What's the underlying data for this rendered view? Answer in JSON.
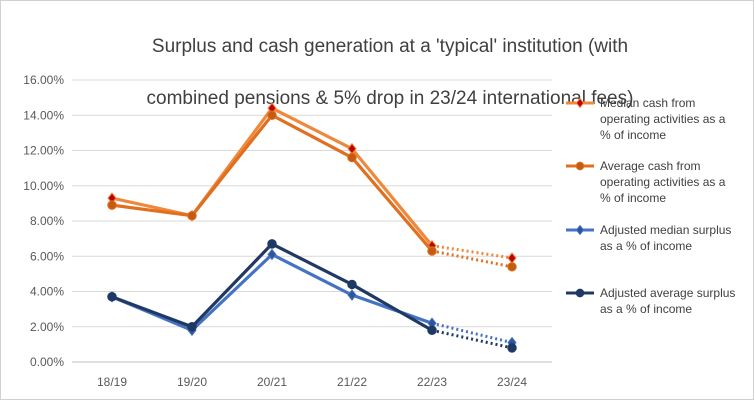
{
  "chart_data": {
    "type": "line",
    "title": "Surplus and cash generation at a 'typical' institution (with combined pensions & 5% drop in 23/24 international fees)",
    "title_lines": [
      "Surplus and cash generation at a 'typical' institution (with",
      "combined pensions & 5% drop in 23/24 international fees)"
    ],
    "categories": [
      "18/19",
      "19/20",
      "20/21",
      "21/22",
      "22/23",
      "23/24"
    ],
    "y_ticks": [
      "0.00%",
      "2.00%",
      "4.00%",
      "6.00%",
      "8.00%",
      "10.00%",
      "12.00%",
      "14.00%",
      "16.00%"
    ],
    "ylim": [
      0,
      16
    ],
    "grid": true,
    "legend_position": "right",
    "projected_from_index": 4,
    "series": [
      {
        "name": "Median cash from operating activities as a % of income",
        "legend_lines": [
          "Median cash from",
          "operating activities as a",
          "% of income"
        ],
        "values": [
          9.3,
          8.3,
          14.4,
          12.1,
          6.6,
          5.9
        ],
        "color": "#F0883C",
        "marker_color": "#C00000",
        "marker": "diamond"
      },
      {
        "name": "Average cash from operating activities as a % of income",
        "legend_lines": [
          "Average cash from",
          "operating activities as a",
          "% of income"
        ],
        "values": [
          8.9,
          8.3,
          14.0,
          11.6,
          6.3,
          5.4
        ],
        "color": "#E07020",
        "marker_color": "#C55A11",
        "marker": "circle"
      },
      {
        "name": "Adjusted median surplus as a % of income",
        "legend_lines": [
          "Adjusted median surplus",
          "as a % of income"
        ],
        "values": [
          3.7,
          1.8,
          6.1,
          3.8,
          2.2,
          1.1
        ],
        "color": "#4472C4",
        "marker_color": "#2F5597",
        "marker": "diamond"
      },
      {
        "name": "Adjusted average surplus as a % of income",
        "legend_lines": [
          "Adjusted average surplus",
          "as a % of income"
        ],
        "values": [
          3.7,
          2.0,
          6.7,
          4.4,
          1.8,
          0.8
        ],
        "color": "#1F3864",
        "marker_color": "#1F3864",
        "marker": "circle"
      }
    ]
  }
}
